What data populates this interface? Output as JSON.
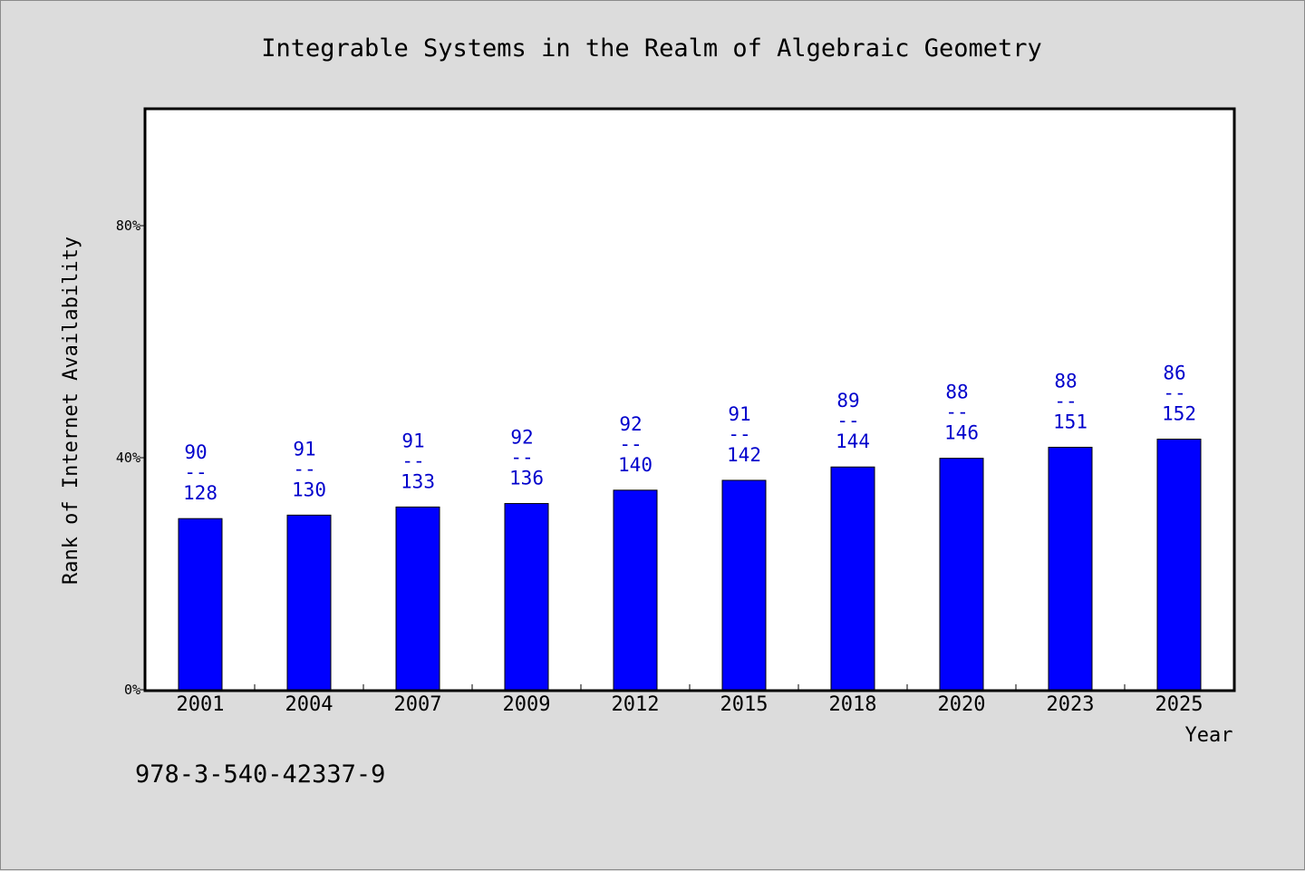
{
  "chart_data": {
    "type": "bar",
    "title": "Integrable Systems in the Realm of Algebraic Geometry",
    "xlabel": "Year",
    "ylabel": "Rank of Internet Availability",
    "categories": [
      "2001",
      "2004",
      "2007",
      "2009",
      "2012",
      "2015",
      "2018",
      "2020",
      "2023",
      "2025"
    ],
    "values": [
      29.5,
      30.1,
      31.5,
      32.1,
      34.4,
      36.1,
      38.4,
      39.9,
      41.8,
      43.2
    ],
    "label_numerators": [
      "90",
      "91",
      "91",
      "92",
      "92",
      "91",
      "89",
      "88",
      "88",
      "86"
    ],
    "label_denominators": [
      "128",
      "130",
      "133",
      "136",
      "140",
      "142",
      "144",
      "146",
      "151",
      "152"
    ],
    "label_divider": "--",
    "ylim": [
      0,
      100
    ],
    "yticks": [
      0,
      40,
      80
    ],
    "ytick_labels": [
      "0%",
      "40%",
      "80%"
    ],
    "bar_color": "#0000ff",
    "label_color": "#0000cc",
    "plot_background": "#ffffff",
    "page_background": "#dcdcdc",
    "grid": false
  },
  "footer": {
    "isbn": "978-3-540-42337-9"
  }
}
